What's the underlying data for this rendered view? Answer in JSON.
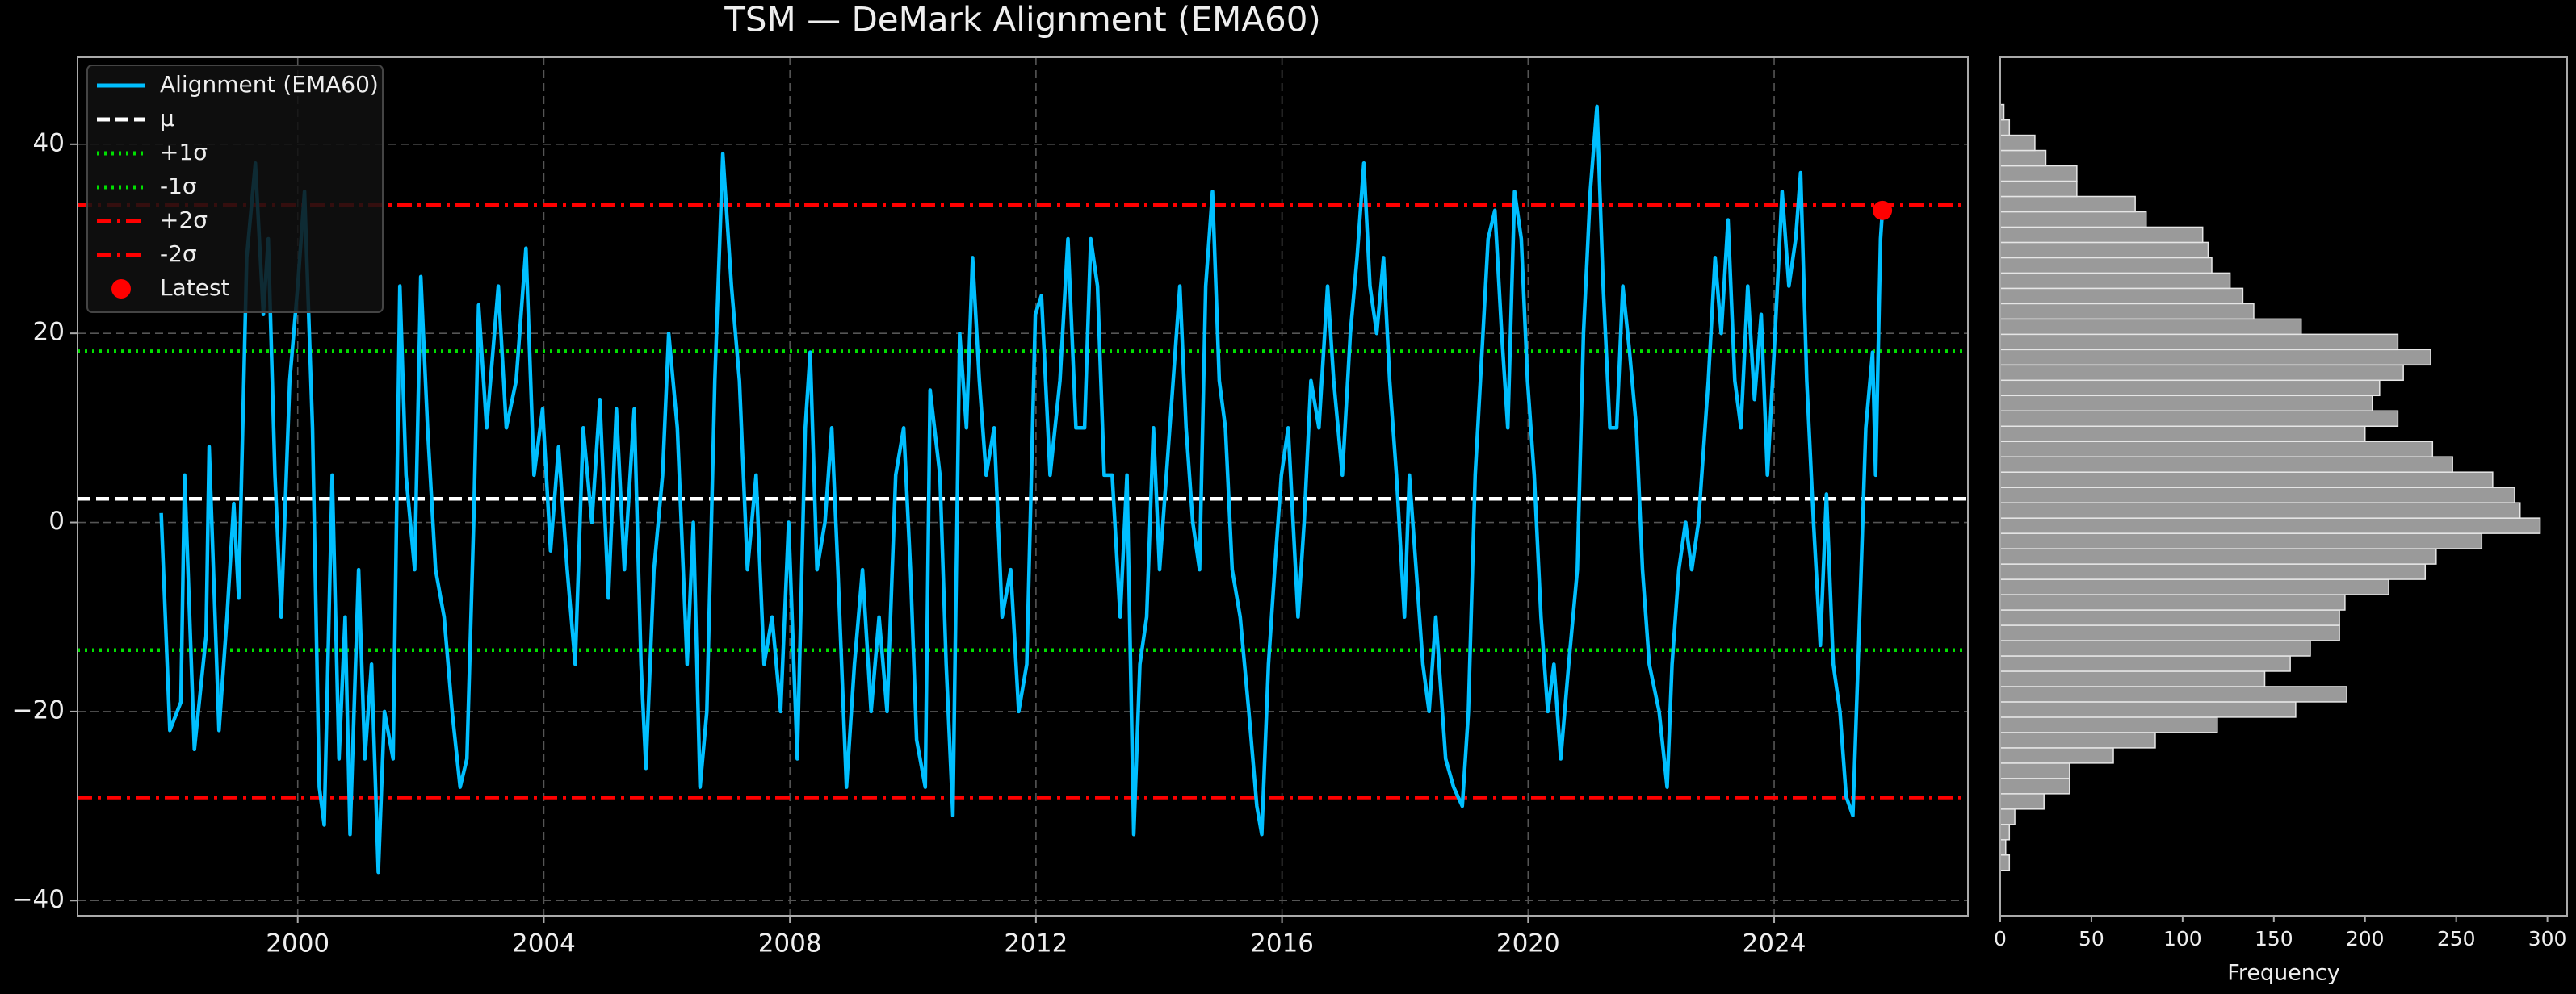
{
  "chart_data": [
    {
      "type": "line",
      "title": "TSM — DeMark Alignment (EMA60)",
      "x": [
        1997.78,
        1997.92,
        1998.1,
        1998.16,
        1998.32,
        1998.51,
        1998.56,
        1998.72,
        1998.85,
        1998.96,
        1999.04,
        1999.17,
        1999.31,
        1999.44,
        1999.52,
        1999.63,
        1999.73,
        1999.87,
        2000.0,
        2000.11,
        2000.24,
        2000.35,
        2000.43,
        2000.56,
        2000.67,
        2000.77,
        2000.85,
        2000.99,
        2001.09,
        2001.2,
        2001.31,
        2001.41,
        2001.55,
        2001.66,
        2001.76,
        2001.9,
        2002.0,
        2002.11,
        2002.24,
        2002.38,
        2002.51,
        2002.64,
        2002.75,
        2002.86,
        2002.94,
        2003.07,
        2003.26,
        2003.39,
        2003.55,
        2003.71,
        2003.84,
        2003.98,
        2004.11,
        2004.24,
        2004.38,
        2004.51,
        2004.64,
        2004.78,
        2004.91,
        2005.05,
        2005.18,
        2005.31,
        2005.47,
        2005.58,
        2005.66,
        2005.79,
        2005.93,
        2006.03,
        2006.17,
        2006.33,
        2006.43,
        2006.54,
        2006.65,
        2006.78,
        2006.91,
        2007.05,
        2007.18,
        2007.31,
        2007.45,
        2007.58,
        2007.71,
        2007.85,
        2007.98,
        2008.12,
        2008.25,
        2008.33,
        2008.44,
        2008.57,
        2008.68,
        2008.78,
        2008.92,
        2009.05,
        2009.18,
        2009.32,
        2009.45,
        2009.58,
        2009.72,
        2009.85,
        2009.96,
        2010.06,
        2010.2,
        2010.28,
        2010.44,
        2010.54,
        2010.65,
        2010.76,
        2010.87,
        2010.97,
        2011.08,
        2011.19,
        2011.32,
        2011.45,
        2011.59,
        2011.72,
        2011.85,
        2011.99,
        2012.09,
        2012.23,
        2012.39,
        2012.52,
        2012.65,
        2012.79,
        2012.89,
        2013.0,
        2013.11,
        2013.24,
        2013.37,
        2013.48,
        2013.59,
        2013.69,
        2013.8,
        2013.91,
        2014.01,
        2014.12,
        2014.23,
        2014.34,
        2014.44,
        2014.55,
        2014.66,
        2014.76,
        2014.87,
        2014.98,
        2015.08,
        2015.19,
        2015.32,
        2015.46,
        2015.59,
        2015.67,
        2015.78,
        2015.88,
        2015.99,
        2016.1,
        2016.26,
        2016.36,
        2016.47,
        2016.6,
        2016.74,
        2016.84,
        2016.98,
        2017.11,
        2017.22,
        2017.33,
        2017.43,
        2017.54,
        2017.65,
        2017.75,
        2017.86,
        2017.99,
        2018.07,
        2018.18,
        2018.29,
        2018.39,
        2018.5,
        2018.66,
        2018.79,
        2018.93,
        2019.03,
        2019.14,
        2019.25,
        2019.35,
        2019.46,
        2019.57,
        2019.67,
        2019.78,
        2019.89,
        2019.99,
        2020.1,
        2020.21,
        2020.32,
        2020.42,
        2020.53,
        2020.66,
        2020.8,
        2020.9,
        2021.01,
        2021.12,
        2021.22,
        2021.33,
        2021.44,
        2021.54,
        2021.65,
        2021.76,
        2021.86,
        2021.97,
        2022.13,
        2022.26,
        2022.34,
        2022.45,
        2022.56,
        2022.66,
        2022.77,
        2022.93,
        2023.04,
        2023.14,
        2023.25,
        2023.36,
        2023.46,
        2023.57,
        2023.68,
        2023.79,
        2023.89,
        2024.0,
        2024.13,
        2024.24,
        2024.35,
        2024.43,
        2024.53,
        2024.64,
        2024.75,
        2024.85,
        2024.96,
        2025.07,
        2025.17,
        2025.28,
        2025.39,
        2025.49,
        2025.6,
        2025.65,
        2025.73,
        2025.76
      ],
      "series": [
        {
          "name": "Alignment (EMA60)",
          "color": "#00bfff",
          "values": [
            1,
            -22,
            -19,
            5,
            -24,
            -12,
            8,
            -22,
            -10,
            2,
            -8,
            28,
            38,
            22,
            30,
            5,
            -10,
            15,
            25,
            35,
            10,
            -28,
            -32,
            5,
            -25,
            -10,
            -33,
            -5,
            -25,
            -15,
            -37,
            -20,
            -25,
            25,
            5,
            -5,
            26,
            10,
            -5,
            -10,
            -20,
            -28,
            -25,
            0,
            23,
            10,
            25,
            10,
            15,
            29,
            5,
            12,
            -3,
            8,
            -5,
            -15,
            10,
            0,
            13,
            -8,
            12,
            -5,
            12,
            -15,
            -26,
            -5,
            5,
            20,
            10,
            -15,
            0,
            -28,
            -20,
            15,
            39,
            25,
            15,
            -5,
            5,
            -15,
            -10,
            -20,
            0,
            -25,
            10,
            18,
            -5,
            0,
            10,
            -5,
            -28,
            -15,
            -5,
            -20,
            -10,
            -20,
            5,
            10,
            -5,
            -23,
            -28,
            14,
            5,
            -15,
            -31,
            20,
            10,
            28,
            15,
            5,
            10,
            -10,
            -5,
            -20,
            -15,
            22,
            24,
            5,
            15,
            30,
            10,
            10,
            30,
            25,
            5,
            5,
            -10,
            5,
            -33,
            -15,
            -10,
            10,
            -5,
            5,
            15,
            25,
            10,
            0,
            -5,
            25,
            35,
            15,
            10,
            -5,
            -10,
            -20,
            -30,
            -33,
            -15,
            -5,
            5,
            10,
            -10,
            0,
            15,
            10,
            25,
            15,
            5,
            20,
            28,
            38,
            25,
            20,
            28,
            15,
            5,
            -10,
            5,
            -5,
            -15,
            -20,
            -10,
            -25,
            -28,
            -30,
            -20,
            5,
            18,
            30,
            33,
            20,
            10,
            35,
            30,
            15,
            5,
            -10,
            -20,
            -15,
            -25,
            -15,
            -5,
            20,
            35,
            44,
            25,
            10,
            10,
            25,
            18,
            10,
            -5,
            -15,
            -20,
            -28,
            -15,
            -5,
            0,
            -5,
            0,
            15,
            28,
            20,
            32,
            15,
            10,
            25,
            13,
            22,
            5,
            18,
            35,
            25,
            30,
            37,
            15,
            0,
            -13,
            3,
            -15,
            -20,
            -29,
            -31,
            -10,
            10,
            18,
            5,
            30,
            33
          ]
        }
      ],
      "hlines": [
        {
          "name": "μ",
          "value": 2.5,
          "color": "#ffffff",
          "style": "dashed"
        },
        {
          "name": "+1σ",
          "value": 18.1,
          "color": "#00e000",
          "style": "dotted"
        },
        {
          "name": "-1σ",
          "value": -13.5,
          "color": "#00e000",
          "style": "dotted"
        },
        {
          "name": "+2σ",
          "value": 33.6,
          "color": "#ff0000",
          "style": "dashdot"
        },
        {
          "name": "-2σ",
          "value": -29.1,
          "color": "#ff0000",
          "style": "dashdot"
        }
      ],
      "latest": {
        "name": "Latest",
        "x": 2025.76,
        "y": 33.0,
        "color": "#ff0000"
      },
      "xlim": [
        1996.42,
        2027.15
      ],
      "xticks": [
        2000,
        2004,
        2008,
        2012,
        2016,
        2020,
        2024
      ],
      "ylim": [
        -41.6,
        49.2
      ],
      "yticks": [
        {
          "value": -40,
          "label": "−40"
        },
        {
          "value": -20,
          "label": "−20"
        },
        0,
        20,
        40
      ],
      "grid": true,
      "legend": "upper left"
    },
    {
      "type": "histogram",
      "orientation": "horizontal",
      "xlabel": "Frequency",
      "color": "#9a9a9a",
      "bins": [
        -36.8,
        -35.18,
        -33.56,
        -31.94,
        -30.32,
        -28.7,
        -27.08,
        -25.46,
        -23.84,
        -22.22,
        -20.6,
        -18.98,
        -17.36,
        -15.74,
        -14.12,
        -12.5,
        -10.88,
        -9.26,
        -7.64,
        -6.02,
        -4.4,
        -2.78,
        -1.16,
        0.46,
        2.08,
        3.7,
        5.32,
        6.94,
        8.56,
        10.18,
        11.8,
        13.42,
        15.04,
        16.66,
        18.28,
        19.9,
        21.52,
        23.14,
        24.76,
        26.38,
        28.0,
        29.62,
        31.24,
        32.86,
        34.48,
        36.1,
        37.72,
        39.34,
        40.96,
        42.58,
        44.2
      ],
      "counts": [
        5,
        3,
        5,
        8,
        24,
        38,
        38,
        62,
        85,
        119,
        162,
        190,
        145,
        159,
        170,
        186,
        186,
        189,
        213,
        233,
        239,
        264,
        296,
        285,
        282,
        270,
        248,
        237,
        200,
        218,
        204,
        208,
        221,
        236,
        218,
        165,
        139,
        133,
        126,
        116,
        114,
        111,
        80,
        74,
        42,
        42,
        25,
        19,
        5,
        2
      ],
      "xlim": [
        0,
        310.8
      ],
      "xticks": [
        0,
        50,
        100,
        150,
        200,
        250,
        300
      ],
      "ylim": [
        -41.6,
        49.2
      ]
    }
  ]
}
